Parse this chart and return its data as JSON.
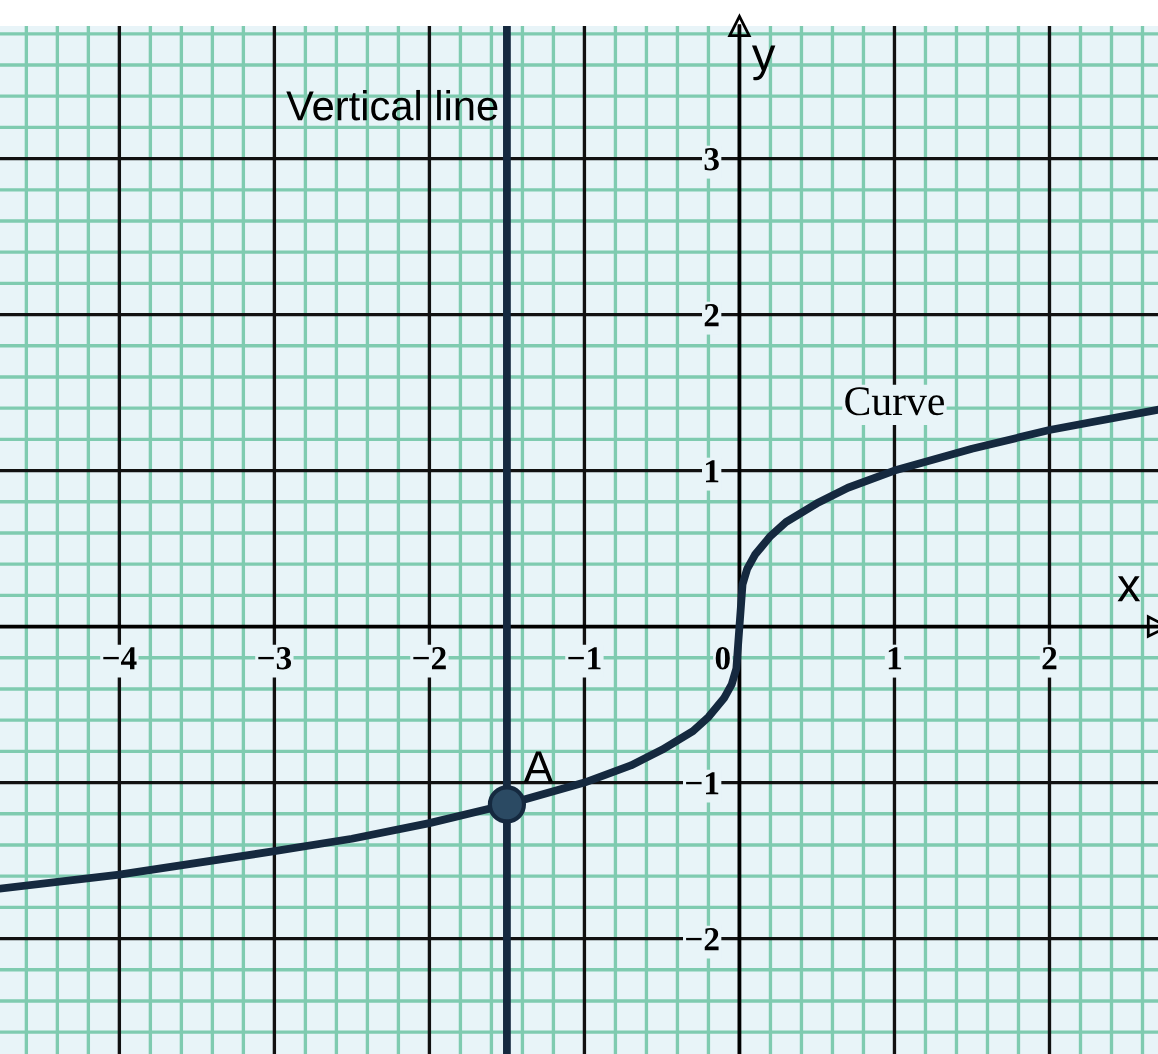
{
  "chart_data": {
    "type": "line",
    "xlabel": "x",
    "ylabel": "y",
    "xlim": [
      -4.77,
      2.7
    ],
    "ylim": [
      -2.74,
      3.85
    ],
    "xticks": [
      {
        "value": -4.6,
        "label": null
      },
      {
        "value": -4.4,
        "label": null
      },
      {
        "value": -4.2,
        "label": null
      },
      {
        "value": -4,
        "label": "−4"
      },
      {
        "value": -3.8,
        "label": null
      },
      {
        "value": -3.6,
        "label": null
      },
      {
        "value": -3.4,
        "label": null
      },
      {
        "value": -3.2,
        "label": null
      },
      {
        "value": -3,
        "label": "−3"
      },
      {
        "value": -2.8,
        "label": null
      },
      {
        "value": -2.6,
        "label": null
      },
      {
        "value": -2.4,
        "label": null
      },
      {
        "value": -2.2,
        "label": null
      },
      {
        "value": -2,
        "label": "−2"
      },
      {
        "value": -1.8,
        "label": null
      },
      {
        "value": -1.6,
        "label": null
      },
      {
        "value": -1.4,
        "label": null
      },
      {
        "value": -1.2,
        "label": null
      },
      {
        "value": -1,
        "label": "−1"
      },
      {
        "value": -0.8,
        "label": null
      },
      {
        "value": -0.6,
        "label": null
      },
      {
        "value": -0.4,
        "label": null
      },
      {
        "value": -0.2,
        "label": null
      },
      0,
      {
        "value": 0.2,
        "label": null
      },
      {
        "value": 0.4,
        "label": null
      },
      {
        "value": 0.6,
        "label": null
      },
      {
        "value": 0.8,
        "label": null
      },
      1,
      {
        "value": 1.2,
        "label": null
      },
      {
        "value": 1.4,
        "label": null
      },
      {
        "value": 1.6,
        "label": null
      },
      {
        "value": 1.8,
        "label": null
      },
      2,
      {
        "value": 2.2,
        "label": null
      },
      {
        "value": 2.4,
        "label": null
      },
      {
        "value": 2.6,
        "label": null
      }
    ],
    "yticks": [
      {
        "value": -2.6,
        "label": null
      },
      {
        "value": -2.4,
        "label": null
      },
      {
        "value": -2.2,
        "label": null
      },
      {
        "value": -2,
        "label": "−2"
      },
      {
        "value": -1.8,
        "label": null
      },
      {
        "value": -1.6,
        "label": null
      },
      {
        "value": -1.4,
        "label": null
      },
      {
        "value": -1.2,
        "label": null
      },
      {
        "value": -1,
        "label": "−1"
      },
      {
        "value": -0.8,
        "label": null
      },
      {
        "value": -0.6,
        "label": null
      },
      {
        "value": -0.4,
        "label": null
      },
      {
        "value": -0.2,
        "label": null
      },
      {
        "value": 0.2,
        "label": null
      },
      {
        "value": 0.4,
        "label": null
      },
      {
        "value": 0.6,
        "label": null
      },
      {
        "value": 0.8,
        "label": null
      },
      1,
      {
        "value": 1.2,
        "label": null
      },
      {
        "value": 1.4,
        "label": null
      },
      {
        "value": 1.6,
        "label": null
      },
      {
        "value": 1.8,
        "label": null
      },
      2,
      {
        "value": 2.2,
        "label": null
      },
      {
        "value": 2.4,
        "label": null
      },
      {
        "value": 2.6,
        "label": null
      },
      {
        "value": 2.8,
        "label": null
      },
      3,
      {
        "value": 3.2,
        "label": null
      },
      {
        "value": 3.4,
        "label": null
      },
      {
        "value": 3.6,
        "label": null
      },
      {
        "value": 3.8,
        "label": null
      }
    ],
    "grid": true,
    "legend": false,
    "series": [
      {
        "name": "Curve",
        "color": "#15293f",
        "x": [
          -4.77,
          -4,
          -3,
          -2.5,
          -2,
          -1.5,
          -1,
          -0.7,
          -0.5,
          -0.3,
          -0.2,
          -0.1,
          -0.05,
          -0.02,
          0,
          0.02,
          0.05,
          0.1,
          0.2,
          0.3,
          0.5,
          0.7,
          1,
          1.5,
          2,
          2.7
        ],
        "values": [
          -1.68,
          -1.59,
          -1.44,
          -1.36,
          -1.26,
          -1.14,
          -1,
          -0.89,
          -0.79,
          -0.67,
          -0.58,
          -0.46,
          -0.37,
          -0.27,
          0,
          0.27,
          0.37,
          0.46,
          0.58,
          0.67,
          0.79,
          0.89,
          1,
          1.14,
          1.26,
          1.39
        ]
      },
      {
        "name": "A",
        "type": "scatter",
        "color": "#2b4a63",
        "x": [
          -1.5
        ],
        "values": [
          -1.14
        ],
        "marker": "circle"
      }
    ],
    "ref_lines": [
      {
        "axis": "x",
        "value": -1.5,
        "label": "Vertical line",
        "color": "#15293f"
      }
    ]
  }
}
